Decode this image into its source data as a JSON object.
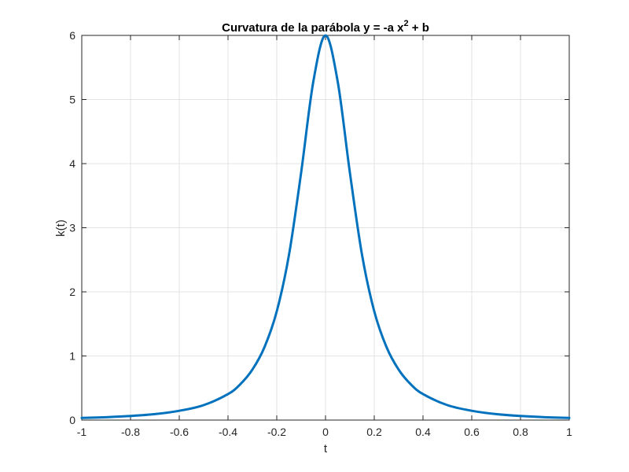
{
  "chart_data": {
    "type": "line",
    "title": "Curvatura de la parábola y = -a x",
    "title_superscript": "2",
    "title_suffix": " + b",
    "xlabel": "t",
    "ylabel": "k(t)",
    "xlim": [
      -1,
      1
    ],
    "ylim": [
      0,
      6
    ],
    "xticks": [
      -1,
      -0.8,
      -0.6,
      -0.4,
      -0.2,
      0,
      0.2,
      0.4,
      0.6,
      0.8,
      1
    ],
    "xtick_labels": [
      "-1",
      "-0.8",
      "-0.6",
      "-0.4",
      "-0.2",
      "0",
      "0.2",
      "0.4",
      "0.6",
      "0.8",
      "1"
    ],
    "yticks": [
      0,
      1,
      2,
      3,
      4,
      5,
      6
    ],
    "ytick_labels": [
      "0",
      "1",
      "2",
      "3",
      "4",
      "5",
      "6"
    ],
    "grid": true,
    "series": [
      {
        "color": "#0072BD",
        "x": [
          -1,
          -0.9,
          -0.8,
          -0.7,
          -0.6,
          -0.5,
          -0.4,
          -0.35,
          -0.3,
          -0.25,
          -0.2,
          -0.15,
          -0.1,
          -0.05,
          0,
          0.05,
          0.1,
          0.15,
          0.2,
          0.25,
          0.3,
          0.35,
          0.4,
          0.5,
          0.6,
          0.7,
          0.8,
          0.9,
          1
        ],
        "y": [
          0.033,
          0.045,
          0.064,
          0.093,
          0.145,
          0.233,
          0.405,
          0.557,
          0.787,
          1.141,
          1.696,
          2.573,
          3.86,
          5.28,
          6.0,
          5.28,
          3.86,
          2.573,
          1.696,
          1.141,
          0.787,
          0.557,
          0.405,
          0.233,
          0.145,
          0.093,
          0.064,
          0.045,
          0.033
        ]
      }
    ]
  }
}
